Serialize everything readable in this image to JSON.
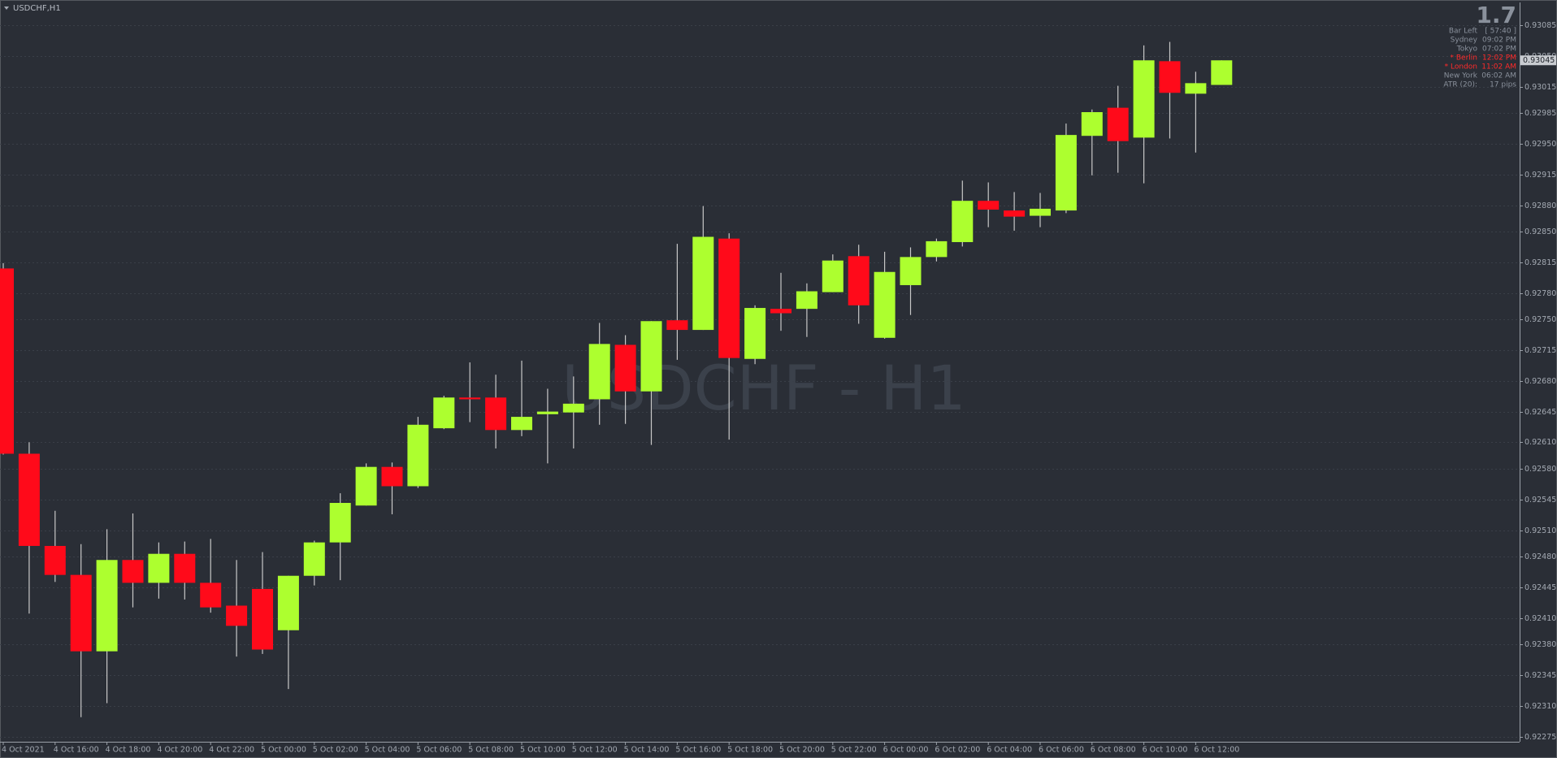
{
  "chart_data": {
    "type": "candlestick",
    "title": "USDCHF,H1",
    "watermark": "USDCHF - H1",
    "categories": [
      "4 Oct 2021",
      null,
      "4 Oct 16:00",
      null,
      "4 Oct 18:00",
      null,
      "4 Oct 20:00",
      null,
      "4 Oct 22:00",
      null,
      "5 Oct 00:00",
      null,
      "5 Oct 02:00",
      null,
      "5 Oct 04:00",
      null,
      "5 Oct 06:00",
      null,
      "5 Oct 08:00",
      null,
      "5 Oct 10:00",
      null,
      "5 Oct 12:00",
      null,
      "5 Oct 14:00",
      null,
      "5 Oct 16:00",
      null,
      "5 Oct 18:00",
      null,
      "5 Oct 20:00",
      null,
      "5 Oct 22:00",
      null,
      "6 Oct 00:00",
      null,
      "6 Oct 02:00",
      null,
      "6 Oct 04:00",
      null,
      "6 Oct 06:00",
      null,
      "6 Oct 08:00",
      null,
      "6 Oct 10:00",
      null,
      "6 Oct 12:00",
      null
    ],
    "open": [
      0.92808,
      0.92597,
      0.92492,
      0.92459,
      0.92372,
      0.92476,
      0.9245,
      0.92483,
      0.9245,
      0.92424,
      0.92443,
      0.92396,
      0.92458,
      0.92496,
      0.92538,
      0.92582,
      0.9256,
      0.92626,
      0.92661,
      0.92661,
      0.92624,
      0.92642,
      0.92644,
      0.92659,
      0.92721,
      0.92668,
      0.92749,
      0.92738,
      0.92842,
      0.92705,
      0.92762,
      0.92762,
      0.92781,
      0.92822,
      0.92729,
      0.92789,
      0.92821,
      0.92838,
      0.92885,
      0.92874,
      0.92868,
      0.92874,
      0.92959,
      0.92991,
      0.92957,
      0.93044,
      0.93007,
      0.93017
    ],
    "high": [
      0.92814,
      0.9261,
      0.92532,
      0.92494,
      0.92511,
      0.92529,
      0.92496,
      0.92497,
      0.925,
      0.92476,
      0.92485,
      0.92458,
      0.92498,
      0.92552,
      0.92586,
      0.92587,
      0.92639,
      0.92663,
      0.92701,
      0.92687,
      0.92703,
      0.92671,
      0.92685,
      0.92746,
      0.92732,
      0.92748,
      0.92836,
      0.92879,
      0.92848,
      0.92766,
      0.92803,
      0.92791,
      0.92824,
      0.92835,
      0.92827,
      0.92832,
      0.92842,
      0.92908,
      0.92906,
      0.92895,
      0.92894,
      0.92973,
      0.92989,
      0.93016,
      0.93062,
      0.93066,
      0.93032,
      0.93045
    ],
    "low": [
      0.92596,
      0.92415,
      0.92451,
      0.92297,
      0.92313,
      0.92422,
      0.92432,
      0.92431,
      0.92416,
      0.92366,
      0.92369,
      0.92329,
      0.92447,
      0.92453,
      0.92538,
      0.92528,
      0.92558,
      0.92625,
      0.92633,
      0.92603,
      0.92617,
      0.92586,
      0.92603,
      0.9263,
      0.92631,
      0.92607,
      0.92704,
      0.92738,
      0.92613,
      0.92699,
      0.92737,
      0.9273,
      0.92781,
      0.92745,
      0.92728,
      0.92755,
      0.92816,
      0.92833,
      0.92855,
      0.92851,
      0.92855,
      0.92871,
      0.92914,
      0.92917,
      0.92905,
      0.92956,
      0.9294,
      0.93017
    ],
    "close": [
      0.92597,
      0.92492,
      0.92459,
      0.92372,
      0.92476,
      0.9245,
      0.92483,
      0.9245,
      0.92422,
      0.92401,
      0.92374,
      0.92458,
      0.92496,
      0.92541,
      0.92582,
      0.9256,
      0.9263,
      0.92661,
      0.92659,
      0.92624,
      0.92639,
      0.92645,
      0.92654,
      0.92722,
      0.92668,
      0.92748,
      0.92738,
      0.92844,
      0.92706,
      0.92763,
      0.92757,
      0.92782,
      0.92817,
      0.92766,
      0.92804,
      0.92821,
      0.92839,
      0.92885,
      0.92875,
      0.92867,
      0.92876,
      0.9296,
      0.92986,
      0.92953,
      0.93045,
      0.93008,
      0.93019,
      0.93045
    ],
    "up_color": "#adff2f",
    "down_color": "#ff0a1a",
    "wick_color": "#c8c8c8",
    "last_price": 0.93045,
    "ylim": [
      0.92269,
      0.9311
    ],
    "yticks": [
      0.93085,
      {
        "value": 0.9305,
        "label": "0.93050"
      },
      0.93015,
      0.92985,
      {
        "value": 0.9295,
        "label": "0.92950"
      },
      0.92915,
      {
        "value": 0.9288,
        "label": "0.92880"
      },
      {
        "value": 0.9285,
        "label": "0.92850"
      },
      0.92815,
      {
        "value": 0.9278,
        "label": "0.92780"
      },
      {
        "value": 0.9275,
        "label": "0.92750"
      },
      0.92715,
      {
        "value": 0.9268,
        "label": "0.92680"
      },
      0.92645,
      {
        "value": 0.9261,
        "label": "0.92610"
      },
      {
        "value": 0.9258,
        "label": "0.92580"
      },
      0.92545,
      {
        "value": 0.9251,
        "label": "0.92510"
      },
      {
        "value": 0.9248,
        "label": "0.92480"
      },
      0.92445,
      {
        "value": 0.9241,
        "label": "0.92410"
      },
      {
        "value": 0.9238,
        "label": "0.92380"
      },
      0.92345,
      {
        "value": 0.9231,
        "label": "0.92310"
      },
      0.92275
    ],
    "grid": true
  },
  "info_panel": {
    "value": "1.7",
    "color": "#8a919c",
    "rows": [
      {
        "label": "Bar Left",
        "text": "[ 57:40 ]",
        "color": "#8a919c"
      },
      {
        "label": "Sydney",
        "text": "09:02 PM",
        "color": "#8a919c"
      },
      {
        "label": "Tokyo",
        "text": "07:02 PM",
        "color": "#8a919c"
      },
      {
        "label": "* Berlin",
        "text": "12:02 PM",
        "color": "#ff2a2a"
      },
      {
        "label": "* London",
        "text": "11:02 AM",
        "color": "#ff2a2a"
      },
      {
        "label": "New York",
        "text": "06:02 AM",
        "color": "#8a919c"
      },
      {
        "label": "ATR (20):",
        "text": "17 pips",
        "color": "#8a919c"
      }
    ]
  }
}
